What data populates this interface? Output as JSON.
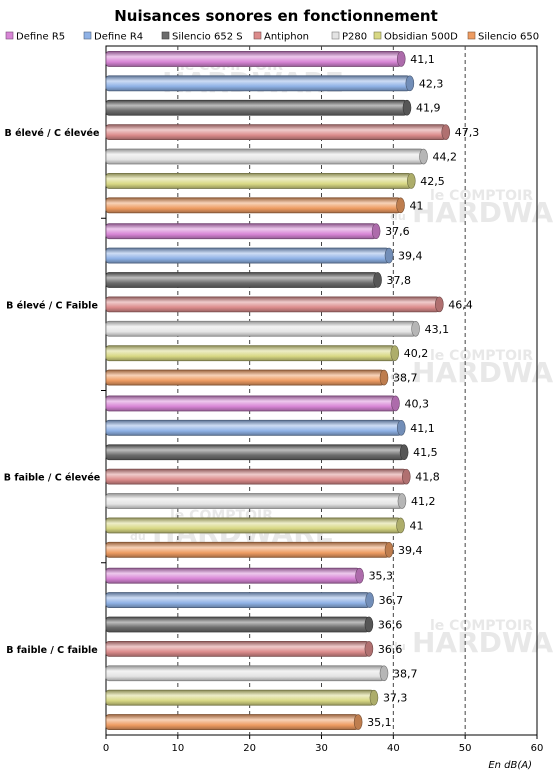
{
  "chart_data": {
    "type": "bar",
    "orientation": "horizontal",
    "title": "Nuisances sonores en fonctionnement",
    "unit_label": "En dB(A)",
    "xlim": [
      0,
      60
    ],
    "x_ticks": [
      0,
      10,
      20,
      30,
      40,
      50,
      60
    ],
    "grid": "vertical dashed",
    "legend": "top",
    "categories": [
      "B élevé / C élevée",
      "B élevé / C Faible",
      "B faible / C élevée",
      "B faible / C faible"
    ],
    "series": [
      {
        "name": "Define R5",
        "color": "#d886d6",
        "values": [
          41.1,
          37.6,
          40.3,
          35.3
        ],
        "labels": [
          "41,1",
          "37,6",
          "40,3",
          "35,3"
        ]
      },
      {
        "name": "Define R4",
        "color": "#8fb2e6",
        "values": [
          42.3,
          39.4,
          41.1,
          36.7
        ],
        "labels": [
          "42,3",
          "39,4",
          "41,1",
          "36,7"
        ]
      },
      {
        "name": "Silencio 652 S",
        "color": "#6c6c6c",
        "values": [
          41.9,
          37.8,
          41.5,
          36.6
        ],
        "labels": [
          "41,9",
          "37,8",
          "41,5",
          "36,6"
        ]
      },
      {
        "name": "Antiphon",
        "color": "#dc8c8c",
        "values": [
          47.3,
          46.4,
          41.8,
          36.6
        ],
        "labels": [
          "47,3",
          "46,4",
          "41,8",
          "36,6"
        ]
      },
      {
        "name": "P280",
        "color": "#e4e4e4",
        "values": [
          44.2,
          43.1,
          41.2,
          38.7
        ],
        "labels": [
          "44,2",
          "43,1",
          "41,2",
          "38,7"
        ]
      },
      {
        "name": "Obsidian 500D",
        "color": "#d8d884",
        "values": [
          42.5,
          40.2,
          41,
          37.3
        ],
        "labels": [
          "42,5",
          "40,2",
          "41",
          "37,3"
        ]
      },
      {
        "name": "Silencio 650",
        "color": "#ee9c62",
        "values": [
          41,
          38.7,
          39.4,
          35.1
        ],
        "labels": [
          "41",
          "38,7",
          "39,4",
          "35,1"
        ]
      }
    ]
  },
  "watermark": {
    "line1": "le COMPTOIR",
    "line2": "du",
    "line3": "HARDWARE"
  }
}
